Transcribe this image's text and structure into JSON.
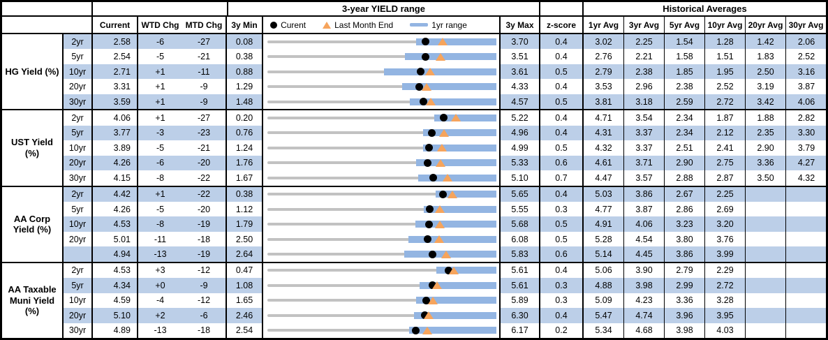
{
  "title_row": {
    "range_box": "3-year YIELD range",
    "hist_box": "Historical Averages"
  },
  "column_headers": {
    "current": "Current",
    "wtd": "WTD Chg",
    "mtd": "MTD Chg",
    "min": "3y Min",
    "max": "3y Max",
    "z": "z-score",
    "avgs": [
      "1yr Avg",
      "3yr Avg",
      "5yr Avg",
      "10yr Avg",
      "20yr Avg",
      "30yr Avg"
    ]
  },
  "legend": {
    "current": "Curent",
    "last_month": "Last Month End",
    "range": "1yr range"
  },
  "colors": {
    "stripe": "#BCCFE8",
    "bar_blue": "#93B5E2",
    "track_gray": "#C2C2C2",
    "marker_dot": "#000000",
    "marker_triangle": "#F6A45C",
    "border": "#000000"
  },
  "chart_data": {
    "type": "table",
    "title": "3-year YIELD range",
    "description": "Each row shows a range strip from 3y Min to 3y Max with a gray 3y track, a blue 1yr range bar, a black dot at Current and an orange triangle at Last Month End.",
    "columns": [
      "Current",
      "WTD Chg",
      "MTD Chg",
      "3y Min",
      "3y Max",
      "z-score",
      "1yr Avg",
      "3yr Avg",
      "5yr Avg",
      "10yr Avg",
      "20yr Avg",
      "30yr Avg"
    ],
    "groups": [
      {
        "label": "HG Yield (%)",
        "rows": [
          {
            "tenor": "2yr",
            "current": "2.58",
            "wtd_chg": "-6",
            "mtd_chg": "-27",
            "min_3y": "0.08",
            "max_3y": "3.70",
            "z_score": "0.4",
            "avgs": [
              "3.02",
              "2.25",
              "1.54",
              "1.28",
              "1.42",
              "2.06"
            ],
            "range": {
              "min": 0.08,
              "max": 3.7,
              "current": 2.58,
              "last_month_end": 2.85,
              "yr1_low": 2.43,
              "yr1_high": 3.7
            }
          },
          {
            "tenor": "5yr",
            "current": "2.54",
            "wtd_chg": "-5",
            "mtd_chg": "-21",
            "min_3y": "0.38",
            "max_3y": "3.51",
            "z_score": "0.4",
            "avgs": [
              "2.76",
              "2.21",
              "1.58",
              "1.51",
              "1.83",
              "2.52"
            ],
            "range": {
              "min": 0.38,
              "max": 3.51,
              "current": 2.54,
              "last_month_end": 2.75,
              "yr1_low": 2.26,
              "yr1_high": 3.51
            }
          },
          {
            "tenor": "10yr",
            "current": "2.71",
            "wtd_chg": "+1",
            "mtd_chg": "-11",
            "min_3y": "0.88",
            "max_3y": "3.61",
            "z_score": "0.5",
            "avgs": [
              "2.79",
              "2.38",
              "1.85",
              "1.95",
              "2.50",
              "3.16"
            ],
            "range": {
              "min": 0.88,
              "max": 3.61,
              "current": 2.71,
              "last_month_end": 2.82,
              "yr1_low": 2.27,
              "yr1_high": 3.61
            }
          },
          {
            "tenor": "20yr",
            "current": "3.31",
            "wtd_chg": "+1",
            "mtd_chg": "-9",
            "min_3y": "1.29",
            "max_3y": "4.33",
            "z_score": "0.4",
            "avgs": [
              "3.53",
              "2.96",
              "2.38",
              "2.52",
              "3.19",
              "3.87"
            ],
            "range": {
              "min": 1.29,
              "max": 4.33,
              "current": 3.31,
              "last_month_end": 3.4,
              "yr1_low": 3.08,
              "yr1_high": 4.33
            }
          },
          {
            "tenor": "30yr",
            "current": "3.59",
            "wtd_chg": "+1",
            "mtd_chg": "-9",
            "min_3y": "1.48",
            "max_3y": "4.57",
            "z_score": "0.5",
            "avgs": [
              "3.81",
              "3.18",
              "2.59",
              "2.72",
              "3.42",
              "4.06"
            ],
            "range": {
              "min": 1.48,
              "max": 4.57,
              "current": 3.59,
              "last_month_end": 3.68,
              "yr1_low": 3.4,
              "yr1_high": 4.57
            }
          }
        ]
      },
      {
        "label": "UST Yield (%)",
        "rows": [
          {
            "tenor": "2yr",
            "current": "4.06",
            "wtd_chg": "+1",
            "mtd_chg": "-27",
            "min_3y": "0.20",
            "max_3y": "5.22",
            "z_score": "0.4",
            "avgs": [
              "4.71",
              "3.54",
              "2.34",
              "1.87",
              "1.88",
              "2.82"
            ],
            "range": {
              "min": 0.2,
              "max": 5.22,
              "current": 4.06,
              "last_month_end": 4.33,
              "yr1_low": 3.86,
              "yr1_high": 5.22
            }
          },
          {
            "tenor": "5yr",
            "current": "3.77",
            "wtd_chg": "-3",
            "mtd_chg": "-23",
            "min_3y": "0.76",
            "max_3y": "4.96",
            "z_score": "0.4",
            "avgs": [
              "4.31",
              "3.37",
              "2.34",
              "2.12",
              "2.35",
              "3.30"
            ],
            "range": {
              "min": 0.76,
              "max": 4.96,
              "current": 3.77,
              "last_month_end": 4.0,
              "yr1_low": 3.62,
              "yr1_high": 4.96
            }
          },
          {
            "tenor": "10yr",
            "current": "3.89",
            "wtd_chg": "-5",
            "mtd_chg": "-21",
            "min_3y": "1.24",
            "max_3y": "4.99",
            "z_score": "0.5",
            "avgs": [
              "4.32",
              "3.37",
              "2.51",
              "2.41",
              "2.90",
              "3.79"
            ],
            "range": {
              "min": 1.24,
              "max": 4.99,
              "current": 3.89,
              "last_month_end": 4.1,
              "yr1_low": 3.79,
              "yr1_high": 4.99
            }
          },
          {
            "tenor": "20yr",
            "current": "4.26",
            "wtd_chg": "-6",
            "mtd_chg": "-20",
            "min_3y": "1.76",
            "max_3y": "5.33",
            "z_score": "0.6",
            "avgs": [
              "4.61",
              "3.71",
              "2.90",
              "2.75",
              "3.36",
              "4.27"
            ],
            "range": {
              "min": 1.76,
              "max": 5.33,
              "current": 4.26,
              "last_month_end": 4.46,
              "yr1_low": 4.08,
              "yr1_high": 5.33
            }
          },
          {
            "tenor": "30yr",
            "current": "4.15",
            "wtd_chg": "-8",
            "mtd_chg": "-22",
            "min_3y": "1.67",
            "max_3y": "5.10",
            "z_score": "0.7",
            "avgs": [
              "4.47",
              "3.57",
              "2.88",
              "2.87",
              "3.50",
              "4.32"
            ],
            "range": {
              "min": 1.67,
              "max": 5.1,
              "current": 4.15,
              "last_month_end": 4.37,
              "yr1_low": 3.93,
              "yr1_high": 5.1
            }
          }
        ]
      },
      {
        "label": "AA Corp Yield (%)",
        "rows": [
          {
            "tenor": "2yr",
            "current": "4.42",
            "wtd_chg": "+1",
            "mtd_chg": "-22",
            "min_3y": "0.38",
            "max_3y": "5.65",
            "z_score": "0.4",
            "avgs": [
              "5.03",
              "3.86",
              "2.67",
              "2.25",
              "",
              ""
            ],
            "range": {
              "min": 0.38,
              "max": 5.65,
              "current": 4.42,
              "last_month_end": 4.64,
              "yr1_low": 4.25,
              "yr1_high": 5.65
            }
          },
          {
            "tenor": "5yr",
            "current": "4.26",
            "wtd_chg": "-5",
            "mtd_chg": "-20",
            "min_3y": "1.12",
            "max_3y": "5.55",
            "z_score": "0.3",
            "avgs": [
              "4.77",
              "3.87",
              "2.86",
              "2.69",
              "",
              ""
            ],
            "range": {
              "min": 1.12,
              "max": 5.55,
              "current": 4.26,
              "last_month_end": 4.46,
              "yr1_low": 4.15,
              "yr1_high": 5.55
            }
          },
          {
            "tenor": "10yr",
            "current": "4.53",
            "wtd_chg": "-8",
            "mtd_chg": "-19",
            "min_3y": "1.79",
            "max_3y": "5.68",
            "z_score": "0.5",
            "avgs": [
              "4.91",
              "4.06",
              "3.23",
              "3.20",
              "",
              ""
            ],
            "range": {
              "min": 1.79,
              "max": 5.68,
              "current": 4.53,
              "last_month_end": 4.72,
              "yr1_low": 4.3,
              "yr1_high": 5.68
            }
          },
          {
            "tenor": "20yr",
            "current": "5.01",
            "wtd_chg": "-11",
            "mtd_chg": "-18",
            "min_3y": "2.50",
            "max_3y": "6.08",
            "z_score": "0.5",
            "avgs": [
              "5.28",
              "4.54",
              "3.80",
              "3.76",
              "",
              ""
            ],
            "range": {
              "min": 2.5,
              "max": 6.08,
              "current": 5.01,
              "last_month_end": 5.19,
              "yr1_low": 4.7,
              "yr1_high": 6.08
            }
          },
          {
            "tenor": "",
            "current": "4.94",
            "wtd_chg": "-13",
            "mtd_chg": "-19",
            "min_3y": "2.64",
            "max_3y": "5.83",
            "z_score": "0.6",
            "avgs": [
              "5.14",
              "4.45",
              "3.86",
              "3.99",
              "",
              ""
            ],
            "range": {
              "min": 2.64,
              "max": 5.83,
              "current": 4.94,
              "last_month_end": 5.13,
              "yr1_low": 4.55,
              "yr1_high": 5.83
            }
          }
        ]
      },
      {
        "label": "AA Taxable Muni Yield (%)",
        "rows": [
          {
            "tenor": "2yr",
            "current": "4.53",
            "wtd_chg": "+3",
            "mtd_chg": "-12",
            "min_3y": "0.47",
            "max_3y": "5.61",
            "z_score": "0.4",
            "avgs": [
              "5.06",
              "3.90",
              "2.79",
              "2.29",
              "",
              ""
            ],
            "range": {
              "min": 0.47,
              "max": 5.61,
              "current": 4.53,
              "last_month_end": 4.65,
              "yr1_low": 4.27,
              "yr1_high": 5.61
            }
          },
          {
            "tenor": "5yr",
            "current": "4.34",
            "wtd_chg": "+0",
            "mtd_chg": "-9",
            "min_3y": "1.08",
            "max_3y": "5.61",
            "z_score": "0.3",
            "avgs": [
              "4.88",
              "3.98",
              "2.99",
              "2.72",
              "",
              ""
            ],
            "range": {
              "min": 1.08,
              "max": 5.61,
              "current": 4.34,
              "last_month_end": 4.43,
              "yr1_low": 4.09,
              "yr1_high": 5.61
            }
          },
          {
            "tenor": "10yr",
            "current": "4.59",
            "wtd_chg": "-4",
            "mtd_chg": "-12",
            "min_3y": "1.65",
            "max_3y": "5.89",
            "z_score": "0.3",
            "avgs": [
              "5.09",
              "4.23",
              "3.36",
              "3.28",
              "",
              ""
            ],
            "range": {
              "min": 1.65,
              "max": 5.89,
              "current": 4.59,
              "last_month_end": 4.71,
              "yr1_low": 4.41,
              "yr1_high": 5.89
            }
          },
          {
            "tenor": "20yr",
            "current": "5.10",
            "wtd_chg": "+2",
            "mtd_chg": "-6",
            "min_3y": "2.46",
            "max_3y": "6.30",
            "z_score": "0.4",
            "avgs": [
              "5.47",
              "4.74",
              "3.96",
              "3.95",
              "",
              ""
            ],
            "range": {
              "min": 2.46,
              "max": 6.3,
              "current": 5.1,
              "last_month_end": 5.16,
              "yr1_low": 4.92,
              "yr1_high": 6.3
            }
          },
          {
            "tenor": "30yr",
            "current": "4.89",
            "wtd_chg": "-13",
            "mtd_chg": "-18",
            "min_3y": "2.54",
            "max_3y": "6.17",
            "z_score": "0.2",
            "avgs": [
              "5.34",
              "4.68",
              "3.98",
              "4.03",
              "",
              ""
            ],
            "range": {
              "min": 2.54,
              "max": 6.17,
              "current": 4.89,
              "last_month_end": 5.07,
              "yr1_low": 4.79,
              "yr1_high": 6.17
            }
          }
        ]
      }
    ]
  }
}
